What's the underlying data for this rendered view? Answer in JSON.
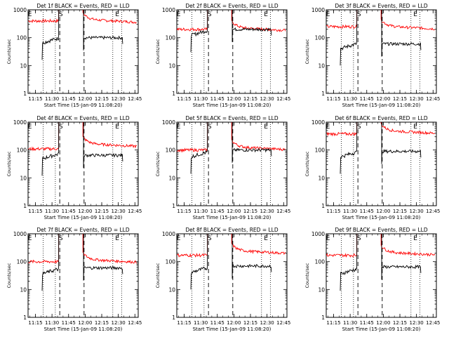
{
  "chart_data": {
    "type": "line",
    "shared": {
      "xlabel": "Start Time (15-Jan-09 11:08:20)",
      "ylabel": "Counts/sec",
      "x_tick_labels": [
        "11:15",
        "11:30",
        "11:45",
        "12:00",
        "12:15",
        "12:30",
        "12:45"
      ],
      "x_tick_times": [
        "11:15",
        "11:30",
        "11:45",
        "12:00",
        "12:15",
        "12:30",
        "12:45"
      ],
      "xlim": [
        "11:08:20",
        "12:48"
      ],
      "y_tick_labels": [
        "1",
        "10",
        "100",
        "1000"
      ],
      "ylim": [
        1,
        1000
      ],
      "y_scale": "log",
      "dotted_lines": [
        "11:22",
        "11:33",
        "12:25",
        "12:33"
      ],
      "dashed_lines": [
        "11:37",
        "11:59"
      ],
      "markers": [
        {
          "label": "E",
          "x": "11:10"
        },
        {
          "label": "S",
          "x": "11:38"
        },
        {
          "label": "E",
          "x": "12:29"
        }
      ],
      "series_colors": {
        "events": "#000000",
        "lld": "#ff0000"
      }
    },
    "panels": [
      {
        "title": "Det 1f BLACK = Events, RED = LLD",
        "red_before": 400,
        "red_after": 450,
        "black_before": 80,
        "black_after": 100,
        "black_sat": 1000,
        "red_sat": 1000
      },
      {
        "title": "Det 2f BLACK = Events, RED = LLD",
        "red_before": 200,
        "red_after": 230,
        "black_before": 150,
        "black_after": 200,
        "black_sat": 1000,
        "red_sat": 1000
      },
      {
        "title": "Det 3f BLACK = Events, RED = LLD",
        "red_before": 250,
        "red_after": 260,
        "black_before": 50,
        "black_after": 60,
        "black_sat": 1000,
        "red_sat": 1000
      },
      {
        "title": "Det 4f BLACK = Events, RED = LLD",
        "red_before": 110,
        "red_after": 170,
        "black_before": 60,
        "black_after": 65,
        "black_sat": 1000,
        "red_sat": 1000
      },
      {
        "title": "Det 5f BLACK = Events, RED = LLD",
        "red_before": 100,
        "red_after": 130,
        "black_before": 70,
        "black_after": 100,
        "black_sat": 1000,
        "red_sat": 1000
      },
      {
        "title": "Det 6f BLACK = Events, RED = LLD",
        "red_before": 380,
        "red_after": 500,
        "black_before": 70,
        "black_after": 90,
        "black_sat": 1000,
        "red_sat": 1000
      },
      {
        "title": "Det 7f BLACK = Events, RED = LLD",
        "red_before": 100,
        "red_after": 120,
        "black_before": 45,
        "black_after": 60,
        "black_sat": 1000,
        "red_sat": 1000
      },
      {
        "title": "Det 8f BLACK = Events, RED = LLD",
        "red_before": 170,
        "red_after": 250,
        "black_before": 50,
        "black_after": 70,
        "black_sat": 1000,
        "red_sat": 1000
      },
      {
        "title": "Det 9f BLACK = Events, RED = LLD",
        "red_before": 170,
        "red_after": 220,
        "black_before": 45,
        "black_after": 65,
        "black_sat": 1000,
        "red_sat": 1000
      }
    ]
  }
}
